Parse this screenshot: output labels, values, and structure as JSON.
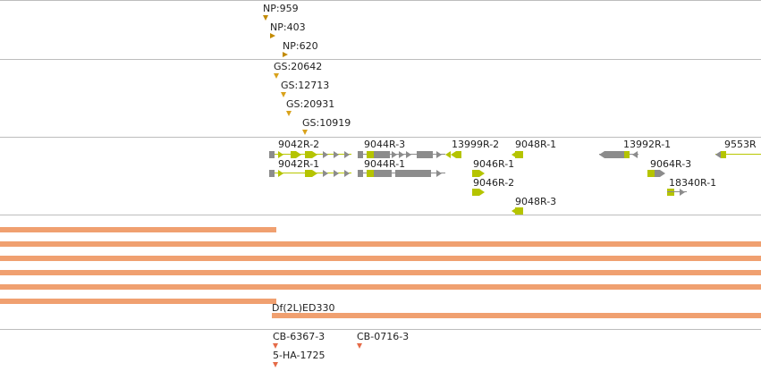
{
  "tracks": {
    "np": {
      "items": [
        {
          "label": "NP:959"
        },
        {
          "label": "NP:403"
        },
        {
          "label": "NP:620"
        }
      ]
    },
    "gs": {
      "items": [
        {
          "label": "GS:20642"
        },
        {
          "label": "GS:12713"
        },
        {
          "label": "GS:20931"
        },
        {
          "label": "GS:10919"
        }
      ]
    },
    "genes": {
      "items": [
        {
          "label": "9042R-2"
        },
        {
          "label": "9042R-1"
        },
        {
          "label": "9044R-3"
        },
        {
          "label": "9044R-1"
        },
        {
          "label": "13999R-2"
        },
        {
          "label": "9048R-1"
        },
        {
          "label": "9046R-1"
        },
        {
          "label": "9046R-2"
        },
        {
          "label": "9048R-3"
        },
        {
          "label": "13992R-1"
        },
        {
          "label": "9553R"
        },
        {
          "label": "9064R-3"
        },
        {
          "label": "18340R-1"
        }
      ]
    },
    "deficiency": {
      "label": "Df(2L)ED330"
    },
    "cb": {
      "items": [
        {
          "label": "CB-6367-3"
        },
        {
          "label": "CB-0716-3"
        },
        {
          "label": "5-HA-1725"
        }
      ]
    }
  },
  "colors": {
    "np_marker": "#c28a00",
    "gs_marker": "#d9a21c",
    "gene_grey": "#8c8c8c",
    "gene_yellow": "#b5c400",
    "deficiency_bar": "#f0a070",
    "cb_marker": "#e56b48",
    "divider": "#bdbdbd"
  }
}
